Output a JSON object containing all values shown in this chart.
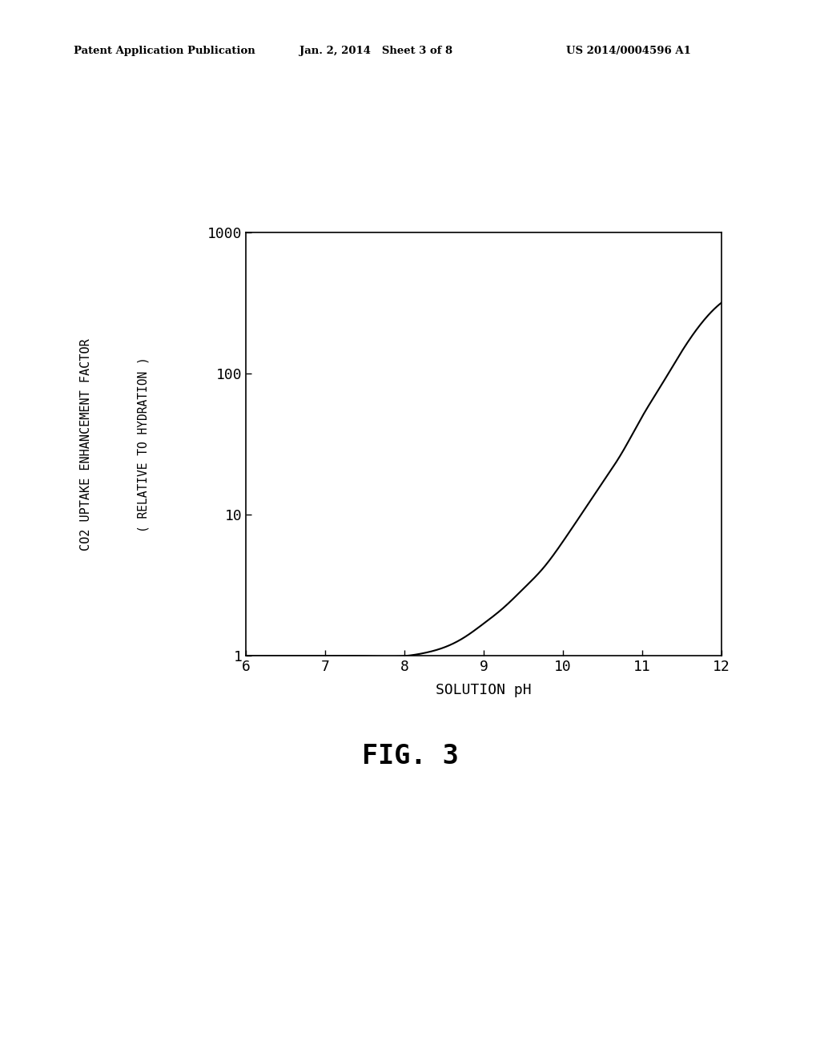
{
  "title": "FIG. 3",
  "xlabel": "SOLUTION pH",
  "ylabel_line1": "CO2 UPTAKE ENHANCEMENT FACTOR",
  "ylabel_line2": "( RELATIVE TO HYDRATION )",
  "x_min": 6,
  "x_max": 12,
  "y_min": 1,
  "y_max": 1000,
  "x_ticks": [
    6,
    7,
    8,
    9,
    10,
    11,
    12
  ],
  "y_ticks": [
    1,
    10,
    100,
    1000
  ],
  "line_color": "#000000",
  "background_color": "#ffffff",
  "header_left": "Patent Application Publication",
  "header_center": "Jan. 2, 2014   Sheet 3 of 8",
  "header_right": "US 2014/0004596 A1",
  "curve_ph": [
    6.0,
    6.5,
    7.0,
    7.5,
    8.0,
    8.25,
    8.5,
    8.75,
    9.0,
    9.25,
    9.5,
    9.75,
    10.0,
    10.25,
    10.5,
    10.75,
    11.0,
    11.25,
    11.5,
    11.75,
    12.0
  ],
  "curve_y": [
    1.0,
    1.0,
    1.0,
    1.0,
    1.0,
    1.05,
    1.15,
    1.35,
    1.7,
    2.2,
    3.0,
    4.2,
    6.5,
    10.5,
    17.0,
    28.0,
    50.0,
    85.0,
    145.0,
    230.0,
    320.0
  ]
}
